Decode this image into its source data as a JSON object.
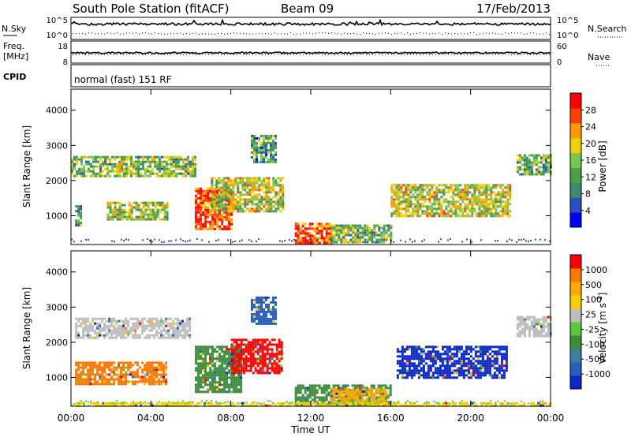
{
  "header": {
    "station": "South Pole Station (fitACF)",
    "beam": "Beam 09",
    "date": "17/Feb/2013"
  },
  "panels": {
    "noise": {
      "left_label": "N.Sky",
      "right_label": "N.Search",
      "left_ticks": [
        "10^5",
        "10^0"
      ],
      "right_ticks": [
        "10^5",
        "10^0"
      ]
    },
    "freq": {
      "left_label_1": "Freq.",
      "left_label_2": "[MHz]",
      "right_label": "Nave",
      "left_ticks": [
        "18",
        "8"
      ],
      "right_ticks": [
        "60",
        "0"
      ]
    },
    "cpid": {
      "label": "CPID",
      "text": "normal (fast) 151 RF"
    }
  },
  "chart_data": [
    {
      "type": "heatmap",
      "name": "power",
      "xlabel": "Time UT",
      "ylabel": "Slant Range [km]",
      "x_ticks": [
        "00:00",
        "04:00",
        "08:00",
        "12:00",
        "16:00",
        "20:00",
        "00:00"
      ],
      "x_range_hours": [
        0,
        24
      ],
      "y_ticks": [
        1000,
        2000,
        3000,
        4000
      ],
      "ylim": [
        180,
        4600
      ],
      "colorbar_label": "Power [dB]",
      "colorbar_ticks": [
        "28",
        "24",
        "20",
        "16",
        "12",
        "8",
        "4"
      ],
      "colorbar_colors": [
        "#0000ff",
        "#2850c0",
        "#3c8c6e",
        "#4ca04c",
        "#78c850",
        "#f0d000",
        "#ff9900",
        "#ff4000",
        "#ff0000"
      ],
      "regions": [
        {
          "t0": 0.0,
          "t1": 6.2,
          "r0": 2150,
          "r1": 2700,
          "level": 0.45
        },
        {
          "t0": 0.2,
          "t1": 0.5,
          "r0": 700,
          "r1": 1300,
          "level": 0.35
        },
        {
          "t0": 1.8,
          "t1": 4.8,
          "r0": 900,
          "r1": 1400,
          "level": 0.5
        },
        {
          "t0": 6.2,
          "t1": 8.0,
          "r0": 600,
          "r1": 1800,
          "level": 0.85
        },
        {
          "t0": 7.0,
          "t1": 10.6,
          "r0": 1100,
          "r1": 2100,
          "level": 0.55
        },
        {
          "t0": 9.0,
          "t1": 10.2,
          "r0": 2500,
          "r1": 3300,
          "level": 0.35
        },
        {
          "t0": 11.2,
          "t1": 13.0,
          "r0": 250,
          "r1": 800,
          "level": 0.85
        },
        {
          "t0": 13.0,
          "t1": 16.0,
          "r0": 250,
          "r1": 750,
          "level": 0.45
        },
        {
          "t0": 16.0,
          "t1": 22.0,
          "r0": 1000,
          "r1": 1900,
          "level": 0.55
        },
        {
          "t0": 22.3,
          "t1": 24.0,
          "r0": 2200,
          "r1": 2750,
          "level": 0.4
        }
      ]
    },
    {
      "type": "heatmap",
      "name": "velocity",
      "xlabel": "Time UT",
      "ylabel": "Slant Range [km]",
      "x_ticks": [
        "00:00",
        "04:00",
        "08:00",
        "12:00",
        "16:00",
        "20:00",
        "00:00"
      ],
      "x_range_hours": [
        0,
        24
      ],
      "y_ticks": [
        1000,
        2000,
        3000,
        4000
      ],
      "ylim": [
        180,
        4600
      ],
      "colorbar_label": "Velocity [m s^-1]",
      "colorbar_ticks": [
        "1000",
        "500",
        "100",
        "25",
        "-25",
        "-100",
        "-500",
        "-1000"
      ],
      "colorbar_colors": [
        "#0a28c8",
        "#2860c0",
        "#3c7ea0",
        "#3c8c3c",
        "#5ac83c",
        "#bebebe",
        "#f0d000",
        "#ffaa00",
        "#ff7800",
        "#ff0000"
      ],
      "regions": [
        {
          "t0": 0.2,
          "t1": 6.0,
          "r0": 2100,
          "r1": 2700,
          "color": "#bebebe"
        },
        {
          "t0": 0.2,
          "t1": 4.8,
          "r0": 800,
          "r1": 1450,
          "color": "#ff7800"
        },
        {
          "t0": 6.2,
          "t1": 8.5,
          "r0": 600,
          "r1": 1900,
          "color": "#3c8c3c"
        },
        {
          "t0": 8.0,
          "t1": 10.5,
          "r0": 1100,
          "r1": 2100,
          "color": "#ff0000"
        },
        {
          "t0": 9.0,
          "t1": 10.2,
          "r0": 2500,
          "r1": 3300,
          "color": "#2860c0"
        },
        {
          "t0": 11.2,
          "t1": 16.0,
          "r0": 250,
          "r1": 800,
          "color": "#3c8c3c"
        },
        {
          "t0": 13.0,
          "t1": 15.8,
          "r0": 250,
          "r1": 700,
          "color": "#ffaa00"
        },
        {
          "t0": 16.3,
          "t1": 21.8,
          "r0": 1000,
          "r1": 1900,
          "color": "#0a28c8"
        },
        {
          "t0": 22.3,
          "t1": 24.0,
          "r0": 2200,
          "r1": 2750,
          "color": "#bebebe"
        },
        {
          "t0": 0.0,
          "t1": 24.0,
          "r0": 190,
          "r1": 300,
          "color": "#f0d000"
        }
      ]
    }
  ]
}
